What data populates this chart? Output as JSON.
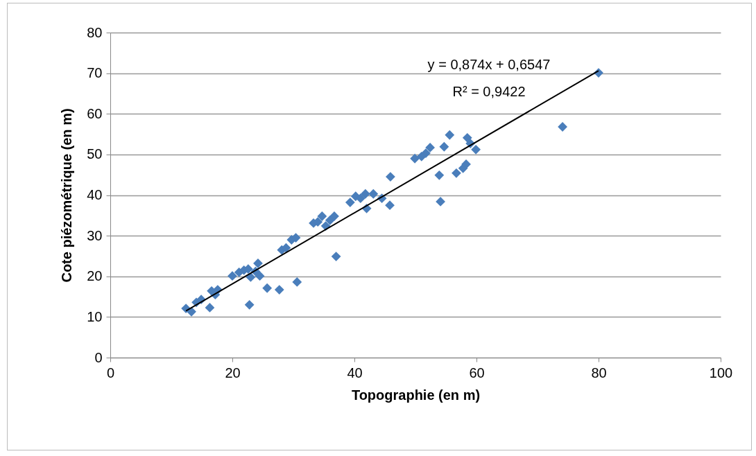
{
  "chart_data": {
    "type": "scatter",
    "xlabel": "Topographie (en m)",
    "ylabel": "Cote piézométrique (en m)",
    "xlim": [
      0,
      100
    ],
    "xticks": [
      0,
      20,
      40,
      60,
      80,
      100
    ],
    "ylim": [
      0,
      80
    ],
    "yticks": [
      0,
      10,
      20,
      30,
      40,
      50,
      60,
      70,
      80
    ],
    "grid": "y",
    "marker": "diamond",
    "annotations": [
      "y = 0,874x + 0,6547",
      "R² = 0,9422"
    ],
    "series": [
      {
        "color": "#4a7ebb",
        "x": [
          12.4,
          13.3,
          14.1,
          14.9,
          16.3,
          16.6,
          17.2,
          17.6,
          20,
          21.1,
          21.9,
          22.6,
          22.8,
          23,
          23.8,
          24.2,
          24.5,
          25.7,
          27.7,
          28.1,
          28.8,
          29.7,
          30.4,
          30.6,
          33.3,
          34,
          34.7,
          35.3,
          36,
          36.7,
          37,
          39.3,
          40.2,
          41,
          41.8,
          42,
          43.1,
          44.5,
          45.8,
          45.9,
          49.9,
          51,
          51.7,
          52.4,
          53.9,
          54.1,
          54.7,
          55.6,
          56.7,
          57.8,
          58.3,
          58.5,
          59,
          59.9,
          74.1,
          80
        ],
        "values": [
          12.1,
          11.3,
          13.6,
          14.3,
          12.3,
          16.4,
          15.5,
          16.7,
          20.1,
          21,
          21.5,
          21.8,
          13,
          19.8,
          21.2,
          23.2,
          20.1,
          17.1,
          16.7,
          26.5,
          27,
          29,
          29.5,
          18.6,
          33.1,
          33.4,
          34.8,
          32.4,
          33.8,
          34.8,
          24.9,
          38.2,
          39.7,
          39.2,
          40.3,
          36.7,
          40.3,
          39.2,
          37.5,
          44.5,
          49,
          49.5,
          50.3,
          51.7,
          44.9,
          38.4,
          51.9,
          54.8,
          45.4,
          46.6,
          47.6,
          54.1,
          52.7,
          51.2,
          56.8,
          70.1
        ]
      },
      {
        "type": "line",
        "color": "#000000",
        "marker": "none",
        "x": [
          12.4,
          80
        ],
        "values": [
          11.5,
          70.6
        ]
      }
    ]
  }
}
